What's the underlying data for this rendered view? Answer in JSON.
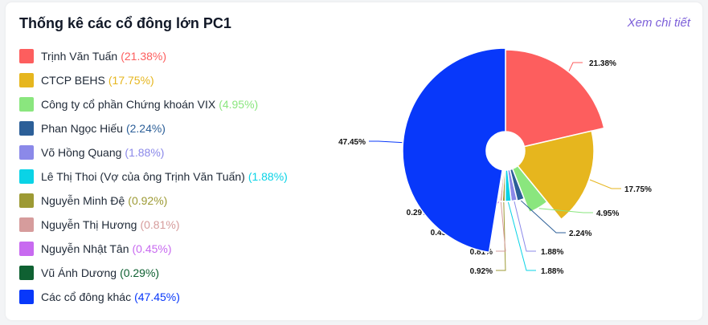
{
  "header": {
    "title": "Thống kê các cổ đông lớn PC1",
    "more_link": "Xem chi tiết"
  },
  "chart_data": {
    "type": "pie",
    "title": "Thống kê các cổ đông lớn PC1",
    "unit": "%",
    "slices": [
      {
        "name": "Trịnh Văn Tuấn",
        "value": 21.38,
        "label": "21.38%",
        "color": "#fd5e5e"
      },
      {
        "name": "CTCP BEHS",
        "value": 17.75,
        "label": "17.75%",
        "color": "#e6b61e"
      },
      {
        "name": "Công ty cổ phần Chứng khoán VIX",
        "value": 4.95,
        "label": "4.95%",
        "color": "#8ae67e"
      },
      {
        "name": "Phan Ngọc Hiếu",
        "value": 2.24,
        "label": "2.24%",
        "color": "#2c5f98"
      },
      {
        "name": "Võ Hồng Quang",
        "value": 1.88,
        "label": "1.88%",
        "color": "#8b89e9"
      },
      {
        "name": "Lê Thị Thoi (Vợ của ông Trịnh Văn Tuấn)",
        "value": 1.88,
        "label": "1.88%",
        "color": "#0ad3e6"
      },
      {
        "name": "Nguyễn Minh Đệ",
        "value": 0.92,
        "label": "0.92%",
        "color": "#9d9a34"
      },
      {
        "name": "Nguyễn Thị Hương",
        "value": 0.81,
        "label": "0.81%",
        "color": "#d69c9c"
      },
      {
        "name": "Nguyễn Nhật Tân",
        "value": 0.45,
        "label": "0.45%",
        "color": "#c86af0"
      },
      {
        "name": "Vũ Ánh Dương",
        "value": 0.29,
        "label": "0.29%",
        "color": "#0f6132"
      },
      {
        "name": "Các cổ đông khác",
        "value": 47.45,
        "label": "47.45%",
        "color": "#0838fa"
      }
    ]
  }
}
